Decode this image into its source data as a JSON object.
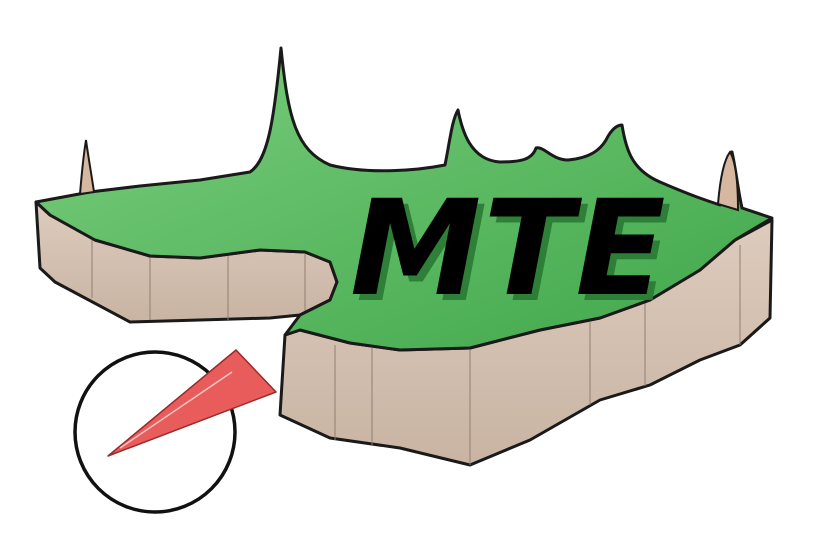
{
  "logo": {
    "text": "MTE",
    "colors": {
      "land_top": "#4fb85a",
      "land_top_light": "#7ccf7e",
      "land_side": "#d6c3b4",
      "land_side_dark": "#c4ae9c",
      "outline": "#1a1a1a",
      "text": "#000000",
      "compass_needle": "#e85c5c",
      "background": "#ffffff"
    },
    "compass": {
      "icon": "compass-icon",
      "needle_icon": "compass-needle-icon"
    }
  }
}
